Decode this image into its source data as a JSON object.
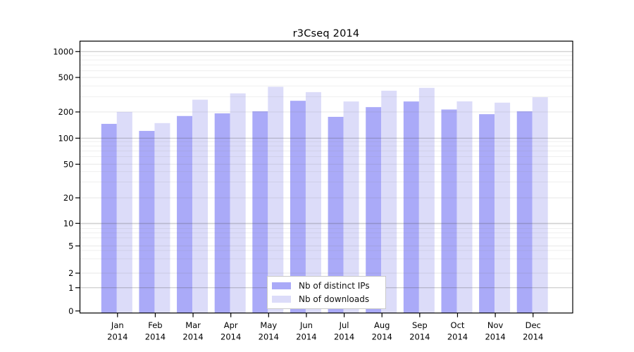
{
  "chart_data": {
    "type": "bar",
    "title": "r3Cseq 2014",
    "categories": [
      "Jan",
      "Feb",
      "Mar",
      "Apr",
      "May",
      "Jun",
      "Jul",
      "Aug",
      "Sep",
      "Oct",
      "Nov",
      "Dec"
    ],
    "x_axis": {
      "year_label": "2014"
    },
    "y_axis": {
      "scale": "log1p",
      "tick_values": [
        0,
        1,
        2,
        5,
        10,
        20,
        50,
        100,
        200,
        500,
        1000
      ],
      "tick_labels": [
        "0",
        "1",
        "2",
        "5",
        "10",
        "20",
        "50",
        "100",
        "200",
        "500",
        "1000"
      ],
      "ylim": [
        0,
        1000
      ]
    },
    "grid": "on",
    "legend": {
      "position": "bottom-center"
    },
    "series": [
      {
        "name": "Nb of distinct IPs",
        "color": "#aaaaf8",
        "values": [
          145,
          120,
          179,
          192,
          203,
          269,
          175,
          227,
          264,
          213,
          188,
          203
        ]
      },
      {
        "name": "Nb of downloads",
        "color": "#dcdcf9",
        "values": [
          200,
          148,
          277,
          328,
          391,
          339,
          264,
          352,
          380,
          265,
          256,
          296
        ]
      }
    ]
  }
}
